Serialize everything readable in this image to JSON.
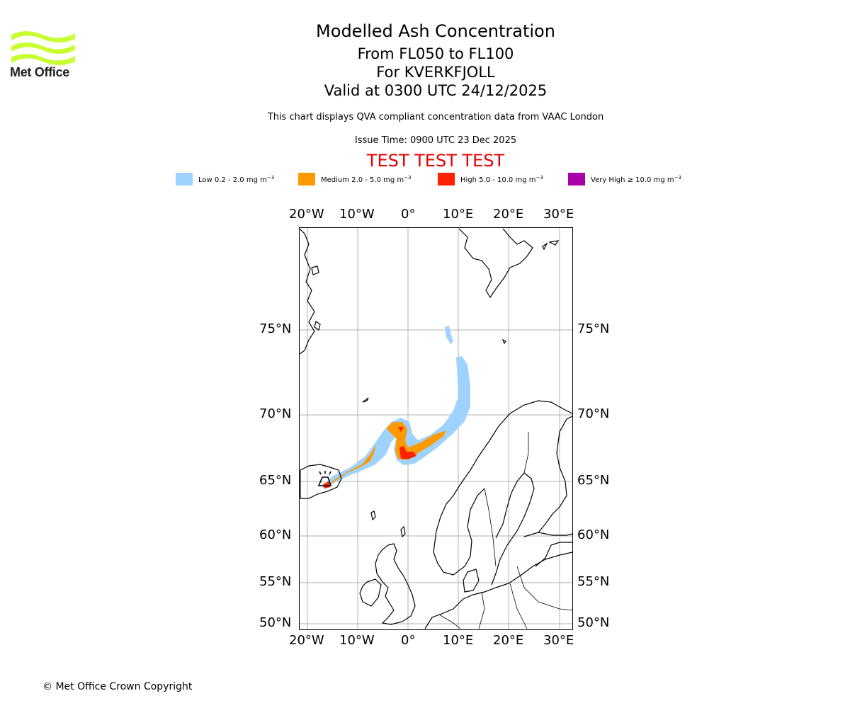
{
  "brand": {
    "logo_text": "Met Office"
  },
  "title": {
    "main": "Modelled Ash Concentration",
    "levels": "From FL050 to FL100",
    "volcano": "For KVERKFJOLL",
    "valid": "Valid at 0300 UTC 24/12/2025",
    "description": "This chart displays QVA compliant concentration data from VAAC London",
    "issue_time": "Issue Time: 0900 UTC 23 Dec 2025",
    "test_banner": "TEST TEST TEST"
  },
  "legend": [
    {
      "label": "Low 0.2 - 2.0 mg m",
      "unit_exp": "−3",
      "color": "#9fd3ff"
    },
    {
      "label": "Medium 2.0 - 5.0 mg m",
      "unit_exp": "−3",
      "color": "#ff9900"
    },
    {
      "label": "High 5.0 - 10.0 mg m",
      "unit_exp": "−3",
      "color": "#ff2200"
    },
    {
      "label": "Very High ≥ 10.0 mg m",
      "unit_exp": "−3",
      "color": "#aa00aa"
    }
  ],
  "axes": {
    "lon_labels": [
      "20°W",
      "10°W",
      "0°",
      "10°E",
      "20°E",
      "30°E"
    ],
    "lat_labels": [
      "75°N",
      "70°N",
      "65°N",
      "60°N",
      "55°N",
      "50°N"
    ]
  },
  "colors": {
    "grid": "#b0b0b0",
    "coast": "#000000",
    "test": "#e60000",
    "logo": "#c8ff32"
  },
  "footer": {
    "copyright": "© Met Office Crown Copyright"
  }
}
